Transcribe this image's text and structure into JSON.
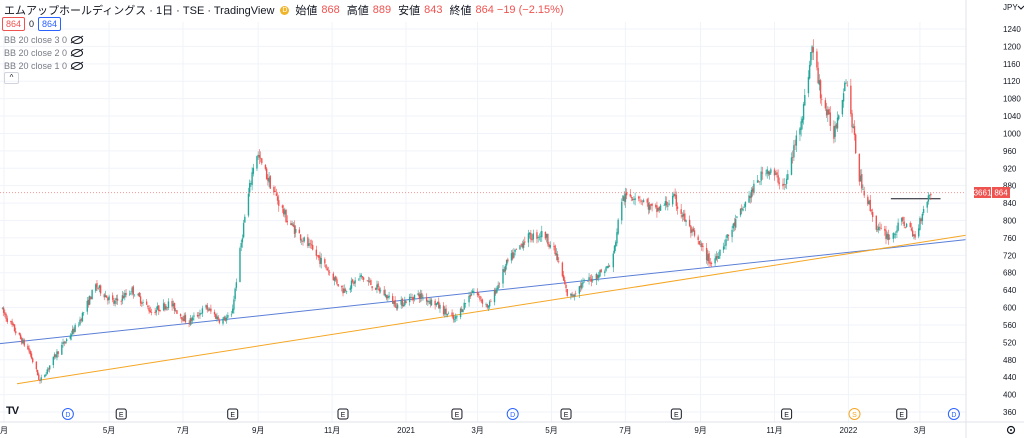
{
  "header": {
    "symbol_title": "エムアップホールディングス · 1日 · TSE · TradingView",
    "market_status_icon": "D",
    "ohlc": [
      {
        "label": "始値",
        "value": "868"
      },
      {
        "label": "高値",
        "value": "889"
      },
      {
        "label": "安値",
        "value": "843"
      },
      {
        "label": "終値",
        "value": "864 −19 (−2.15%)"
      }
    ]
  },
  "pills": {
    "sell": "864",
    "spread": "0",
    "buy": "864"
  },
  "indicators": [
    {
      "label": "BB 20 close 3 0"
    },
    {
      "label": "BB 20 close 2 0"
    },
    {
      "label": "BB 20 close 1 0"
    }
  ],
  "currency": "JPY",
  "price_tag": {
    "left": "3661",
    "right": "864"
  },
  "logo_text": "TV",
  "x_axis_labels": [
    {
      "label": "月",
      "date": "2020-02"
    },
    {
      "label": "5月",
      "date": "2020-05"
    },
    {
      "label": "7月",
      "date": "2020-07"
    },
    {
      "label": "9月",
      "date": "2020-09"
    },
    {
      "label": "11月",
      "date": "2020-11"
    },
    {
      "label": "2021",
      "date": "2021-01"
    },
    {
      "label": "3月",
      "date": "2021-03"
    },
    {
      "label": "5月",
      "date": "2021-05"
    },
    {
      "label": "7月",
      "date": "2021-07"
    },
    {
      "label": "9月",
      "date": "2021-09"
    },
    {
      "label": "11月",
      "date": "2021-11"
    },
    {
      "label": "2022",
      "date": "2022-01"
    },
    {
      "label": "3月",
      "date": "2022-03"
    }
  ],
  "events": [
    {
      "type": "D",
      "date": "2020-03-28"
    },
    {
      "type": "E",
      "date": "2020-05-11"
    },
    {
      "type": "E",
      "date": "2020-08-11"
    },
    {
      "type": "E",
      "date": "2020-11-10"
    },
    {
      "type": "E",
      "date": "2021-02-12"
    },
    {
      "type": "D",
      "date": "2021-03-30"
    },
    {
      "type": "E",
      "date": "2021-05-13"
    },
    {
      "type": "E",
      "date": "2021-08-12"
    },
    {
      "type": "E",
      "date": "2021-11-11"
    },
    {
      "type": "S",
      "date": "2022-01-06"
    },
    {
      "type": "E",
      "date": "2022-02-14"
    },
    {
      "type": "D",
      "date": "2022-03-29"
    }
  ],
  "chart_data": {
    "type": "candlestick",
    "y_axis": {
      "min": 360,
      "max": 1240,
      "ticks": [
        360,
        400,
        440,
        480,
        520,
        560,
        600,
        640,
        680,
        720,
        760,
        800,
        840,
        880,
        920,
        960,
        1000,
        1040,
        1080,
        1120,
        1160,
        1200,
        1240
      ]
    },
    "x_range": [
      "2020-02-01",
      "2022-04-08"
    ],
    "colors": {
      "up": "#26a69a",
      "down": "#ef5350",
      "blue_trend": "#5b7fd6",
      "orange_trend": "#f5a623",
      "last_price": "#ef5350"
    },
    "last_price": 864,
    "trendlines": [
      {
        "color": "blue",
        "from": {
          "date": "2020-02-01",
          "price": 517
        },
        "to": {
          "date": "2022-04-08",
          "price": 756
        }
      },
      {
        "color": "orange",
        "from": {
          "date": "2020-02-15",
          "price": 425
        },
        "to": {
          "date": "2022-04-08",
          "price": 766
        }
      },
      {
        "color": "black",
        "type": "horizontal",
        "from": {
          "date": "2022-02-05",
          "price": 850
        },
        "to": {
          "date": "2022-03-18",
          "price": 850
        }
      }
    ],
    "price_path": [
      [
        "2020-02-01",
        600
      ],
      [
        "2020-02-15",
        540
      ],
      [
        "2020-02-25",
        500
      ],
      [
        "2020-03-05",
        430
      ],
      [
        "2020-03-20",
        500
      ],
      [
        "2020-04-05",
        560
      ],
      [
        "2020-04-20",
        650
      ],
      [
        "2020-05-05",
        610
      ],
      [
        "2020-05-20",
        640
      ],
      [
        "2020-06-05",
        590
      ],
      [
        "2020-06-20",
        610
      ],
      [
        "2020-07-05",
        565
      ],
      [
        "2020-07-20",
        600
      ],
      [
        "2020-08-01",
        570
      ],
      [
        "2020-08-10",
        580
      ],
      [
        "2020-08-20",
        790
      ],
      [
        "2020-08-30",
        960
      ],
      [
        "2020-09-10",
        890
      ],
      [
        "2020-09-25",
        800
      ],
      [
        "2020-10-10",
        750
      ],
      [
        "2020-10-25",
        700
      ],
      [
        "2020-11-10",
        640
      ],
      [
        "2020-11-25",
        670
      ],
      [
        "2020-12-10",
        640
      ],
      [
        "2020-12-25",
        605
      ],
      [
        "2021-01-10",
        630
      ],
      [
        "2021-01-25",
        610
      ],
      [
        "2021-02-10",
        570
      ],
      [
        "2021-02-25",
        640
      ],
      [
        "2021-03-10",
        600
      ],
      [
        "2021-03-25",
        700
      ],
      [
        "2021-04-10",
        760
      ],
      [
        "2021-04-25",
        770
      ],
      [
        "2021-05-05",
        720
      ],
      [
        "2021-05-15",
        620
      ],
      [
        "2021-05-25",
        650
      ],
      [
        "2021-06-10",
        680
      ],
      [
        "2021-06-20",
        700
      ],
      [
        "2021-06-28",
        850
      ],
      [
        "2021-07-10",
        860
      ],
      [
        "2021-07-25",
        820
      ],
      [
        "2021-08-10",
        850
      ],
      [
        "2021-08-25",
        770
      ],
      [
        "2021-09-10",
        700
      ],
      [
        "2021-09-25",
        770
      ],
      [
        "2021-10-10",
        850
      ],
      [
        "2021-10-25",
        920
      ],
      [
        "2021-11-10",
        880
      ],
      [
        "2021-11-25",
        1060
      ],
      [
        "2021-12-02",
        1200
      ],
      [
        "2021-12-10",
        1080
      ],
      [
        "2021-12-20",
        1000
      ],
      [
        "2021-12-30",
        1130
      ],
      [
        "2022-01-10",
        900
      ],
      [
        "2022-01-25",
        780
      ],
      [
        "2022-02-05",
        760
      ],
      [
        "2022-02-15",
        800
      ],
      [
        "2022-02-25",
        760
      ],
      [
        "2022-03-05",
        840
      ],
      [
        "2022-03-10",
        864
      ]
    ]
  }
}
